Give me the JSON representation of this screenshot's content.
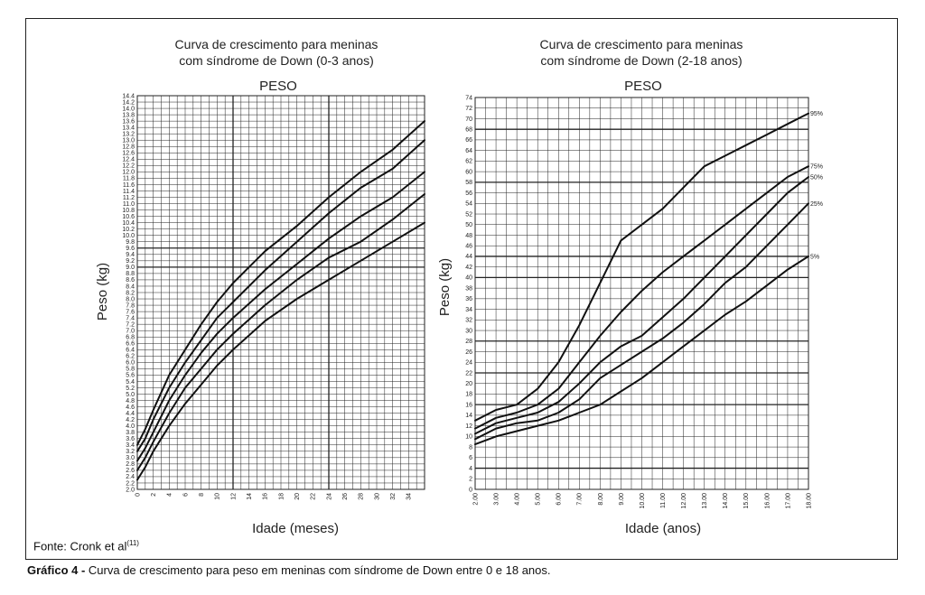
{
  "source": {
    "text": "Fonte: Cronk et al",
    "sup": "(11)"
  },
  "caption": {
    "label": "Gráfico 4 -",
    "text": " Curva de crescimento para peso em meninas com síndrome de Down entre 0 e 18 anos."
  },
  "chart_data": [
    {
      "type": "line",
      "title_line1": "Curva de crescimento para meninas",
      "title_line2": "com síndrome de Down (0-3 anos)",
      "subtitle": "PESO",
      "xlabel": "Idade (meses)",
      "ylabel": "Peso (kg)",
      "xlim": [
        0,
        36
      ],
      "ylim": [
        2.0,
        14.4
      ],
      "xticks": [
        "0",
        "2",
        "4",
        "6",
        "8",
        "10",
        "12",
        "14",
        "16",
        "18",
        "20",
        "22",
        "24",
        "26",
        "28",
        "30",
        "32",
        "34"
      ],
      "yticks": [
        "2.0",
        "2.2",
        "2.4",
        "2.6",
        "2.8",
        "3.0",
        "3.2",
        "3.4",
        "3.6",
        "3.8",
        "4.0",
        "4.2",
        "4.4",
        "4.6",
        "4.8",
        "5.0",
        "5.2",
        "5.4",
        "5.6",
        "5.8",
        "6.0",
        "6.2",
        "6.4",
        "6.6",
        "6.8",
        "7.0",
        "7.2",
        "7.4",
        "7.6",
        "7.8",
        "8.0",
        "8.2",
        "8.4",
        "8.6",
        "8.8",
        "9.0",
        "9.2",
        "9.4",
        "9.6",
        "9.8",
        "10.0",
        "10.2",
        "10.4",
        "10.6",
        "10.8",
        "11.0",
        "11.2",
        "11.4",
        "11.6",
        "11.8",
        "12.0",
        "12.2",
        "12.4",
        "12.6",
        "12.8",
        "13.0",
        "13.2",
        "13.4",
        "13.6",
        "13.8",
        "14.0",
        "14.2",
        "14.4"
      ],
      "grid": true,
      "series": [
        {
          "x": [
            0,
            1,
            2,
            4,
            6,
            8,
            10,
            12,
            16,
            20,
            24,
            28,
            32,
            36
          ],
          "values": [
            3.4,
            3.9,
            4.5,
            5.6,
            6.4,
            7.2,
            7.9,
            8.5,
            9.5,
            10.3,
            11.2,
            12.0,
            12.7,
            13.6
          ]
        },
        {
          "x": [
            0,
            1,
            2,
            4,
            6,
            8,
            10,
            12,
            16,
            20,
            24,
            28,
            32,
            36
          ],
          "values": [
            3.2,
            3.6,
            4.2,
            5.2,
            6.0,
            6.7,
            7.4,
            7.9,
            8.9,
            9.8,
            10.7,
            11.5,
            12.1,
            13.0
          ]
        },
        {
          "x": [
            0,
            1,
            2,
            4,
            6,
            8,
            10,
            12,
            16,
            20,
            24,
            28,
            32,
            36
          ],
          "values": [
            2.9,
            3.3,
            3.8,
            4.8,
            5.6,
            6.3,
            6.9,
            7.4,
            8.3,
            9.1,
            9.9,
            10.6,
            11.2,
            12.0
          ]
        },
        {
          "x": [
            0,
            1,
            2,
            4,
            6,
            8,
            10,
            12,
            16,
            20,
            24,
            28,
            32,
            36
          ],
          "values": [
            2.6,
            3.0,
            3.5,
            4.4,
            5.2,
            5.8,
            6.4,
            6.9,
            7.8,
            8.6,
            9.3,
            9.8,
            10.5,
            11.3
          ]
        },
        {
          "x": [
            0,
            1,
            2,
            4,
            6,
            8,
            10,
            12,
            16,
            20,
            24,
            28,
            32,
            36
          ],
          "values": [
            2.3,
            2.7,
            3.2,
            4.0,
            4.7,
            5.3,
            5.9,
            6.4,
            7.3,
            8.0,
            8.6,
            9.2,
            9.8,
            10.4
          ]
        }
      ]
    },
    {
      "type": "line",
      "title_line1": "Curva de crescimento para meninas",
      "title_line2": "com síndrome de Down (2-18 anos)",
      "subtitle": "PESO",
      "xlabel": "Idade (anos)",
      "ylabel": "Peso (kg)",
      "xlim": [
        2,
        18
      ],
      "ylim": [
        0,
        74
      ],
      "xticks": [
        "2.00",
        "3.00",
        "4.00",
        "5.00",
        "6.00",
        "7.00",
        "8.00",
        "9.00",
        "10.00",
        "11.00",
        "12.00",
        "13.00",
        "14.00",
        "15.00",
        "16.00",
        "17.00",
        "18.00"
      ],
      "yticks": [
        "0",
        "2",
        "4",
        "6",
        "8",
        "10",
        "12",
        "14",
        "16",
        "18",
        "20",
        "22",
        "24",
        "26",
        "28",
        "30",
        "32",
        "34",
        "36",
        "38",
        "40",
        "42",
        "44",
        "46",
        "48",
        "50",
        "52",
        "54",
        "56",
        "58",
        "60",
        "62",
        "64",
        "66",
        "68",
        "70",
        "72",
        "74"
      ],
      "grid": true,
      "series": [
        {
          "name": "95%",
          "x": [
            2,
            3,
            4,
            5,
            6,
            7,
            8,
            9,
            10,
            11,
            12,
            13,
            14,
            15,
            16,
            17,
            18
          ],
          "values": [
            13,
            15,
            16,
            19,
            24,
            31,
            39,
            47,
            50,
            53,
            57,
            61,
            63,
            65,
            67,
            69,
            71
          ]
        },
        {
          "name": "75%",
          "x": [
            2,
            3,
            4,
            5,
            6,
            7,
            8,
            9,
            10,
            11,
            12,
            13,
            14,
            15,
            16,
            17,
            18
          ],
          "values": [
            11.5,
            13.5,
            14.5,
            16,
            19,
            24,
            29,
            33.5,
            37.5,
            41,
            44,
            47,
            50,
            53,
            56,
            59,
            61
          ]
        },
        {
          "name": "50%",
          "x": [
            2,
            3,
            4,
            5,
            6,
            7,
            8,
            9,
            10,
            11,
            12,
            13,
            14,
            15,
            16,
            17,
            18
          ],
          "values": [
            10.5,
            12.5,
            13.5,
            14.5,
            16.5,
            20,
            24,
            27,
            29,
            32.5,
            36,
            40,
            44,
            48,
            52,
            56,
            59
          ]
        },
        {
          "name": "25%",
          "x": [
            2,
            3,
            4,
            5,
            6,
            7,
            8,
            9,
            10,
            11,
            12,
            13,
            14,
            15,
            16,
            17,
            18
          ],
          "values": [
            9.5,
            11.5,
            12.5,
            13,
            14.5,
            17,
            21,
            23.5,
            26,
            28.5,
            31.5,
            35,
            39,
            42,
            46,
            50,
            54
          ]
        },
        {
          "name": "5%",
          "x": [
            2,
            3,
            4,
            5,
            6,
            7,
            8,
            9,
            10,
            11,
            12,
            13,
            14,
            15,
            16,
            17,
            18
          ],
          "values": [
            8.5,
            10,
            11,
            12,
            13,
            14.5,
            16,
            18.5,
            21,
            24,
            27,
            30,
            33,
            35.5,
            38.5,
            41.5,
            44
          ]
        }
      ]
    }
  ]
}
